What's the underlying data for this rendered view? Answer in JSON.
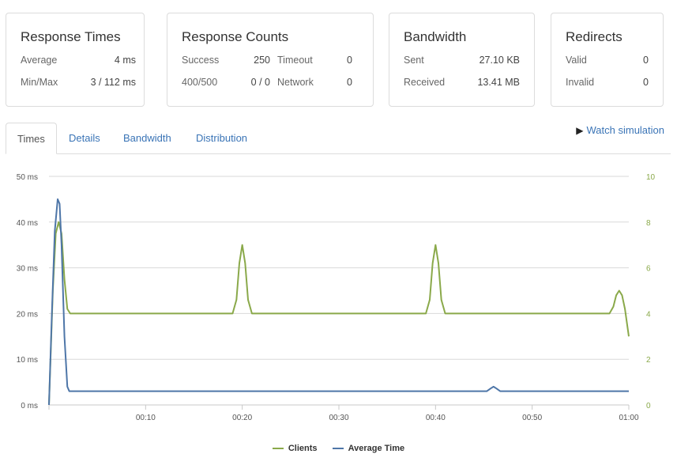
{
  "cards": {
    "response_times": {
      "title": "Response Times",
      "rows": [
        {
          "label": "Average",
          "value": "4 ms"
        },
        {
          "label": "Min/Max",
          "value": "3 / 112 ms"
        }
      ]
    },
    "response_counts": {
      "title": "Response Counts",
      "left": [
        {
          "label": "Success",
          "value": "250"
        },
        {
          "label": "400/500",
          "value": "0 / 0"
        }
      ],
      "right": [
        {
          "label": "Timeout",
          "value": "0"
        },
        {
          "label": "Network",
          "value": "0"
        }
      ]
    },
    "bandwidth": {
      "title": "Bandwidth",
      "rows": [
        {
          "label": "Sent",
          "value": "27.10 KB"
        },
        {
          "label": "Received",
          "value": "13.41 MB"
        }
      ]
    },
    "redirects": {
      "title": "Redirects",
      "rows": [
        {
          "label": "Valid",
          "value": "0"
        },
        {
          "label": "Invalid",
          "value": "0"
        }
      ]
    }
  },
  "tabs": [
    {
      "label": "Times",
      "active": true
    },
    {
      "label": "Details",
      "active": false
    },
    {
      "label": "Bandwidth",
      "active": false
    },
    {
      "label": "Distribution",
      "active": false
    }
  ],
  "watch_simulation": {
    "icon": "play-icon",
    "label": "Watch simulation"
  },
  "colors": {
    "clients": "#8aa94a",
    "average_time": "#4e76a8",
    "link": "#3a74b6"
  },
  "chart_data": {
    "type": "line",
    "x_unit": "seconds",
    "x_ticks": [
      "00:10",
      "00:20",
      "00:30",
      "00:40",
      "00:50",
      "01:00"
    ],
    "x_tick_values": [
      10,
      20,
      30,
      40,
      50,
      60
    ],
    "xlim": [
      0,
      60
    ],
    "y_left": {
      "ticks": [
        "0 ms",
        "10 ms",
        "20 ms",
        "30 ms",
        "40 ms",
        "50 ms"
      ],
      "tick_values": [
        0,
        10,
        20,
        30,
        40,
        50
      ],
      "lim": [
        0,
        50
      ]
    },
    "y_right": {
      "ticks": [
        "0",
        "2",
        "4",
        "6",
        "8",
        "10"
      ],
      "tick_values": [
        0,
        2,
        4,
        6,
        8,
        10
      ],
      "lim": [
        0,
        10
      ]
    },
    "grid": true,
    "legend_position": "bottom-center",
    "series": [
      {
        "name": "Clients",
        "axis": "right",
        "color": "#8aa94a",
        "points": [
          [
            0,
            0
          ],
          [
            0.4,
            5
          ],
          [
            0.7,
            7.5
          ],
          [
            1.0,
            8
          ],
          [
            1.3,
            7.5
          ],
          [
            1.6,
            5.5
          ],
          [
            1.9,
            4.2
          ],
          [
            2.2,
            4
          ],
          [
            19.0,
            4
          ],
          [
            19.4,
            4.6
          ],
          [
            19.7,
            6.2
          ],
          [
            20.0,
            7
          ],
          [
            20.3,
            6.2
          ],
          [
            20.6,
            4.6
          ],
          [
            21.0,
            4
          ],
          [
            39.0,
            4
          ],
          [
            39.4,
            4.6
          ],
          [
            39.7,
            6.2
          ],
          [
            40.0,
            7
          ],
          [
            40.3,
            6.2
          ],
          [
            40.6,
            4.6
          ],
          [
            41.0,
            4
          ],
          [
            58.0,
            4
          ],
          [
            58.4,
            4.3
          ],
          [
            58.7,
            4.8
          ],
          [
            59.0,
            5
          ],
          [
            59.3,
            4.8
          ],
          [
            59.6,
            4.2
          ],
          [
            60.0,
            3
          ]
        ]
      },
      {
        "name": "Average Time",
        "axis": "left",
        "color": "#4e76a8",
        "points": [
          [
            0,
            0
          ],
          [
            0.3,
            20
          ],
          [
            0.6,
            38
          ],
          [
            0.9,
            45
          ],
          [
            1.1,
            44
          ],
          [
            1.3,
            35
          ],
          [
            1.6,
            15
          ],
          [
            1.9,
            4
          ],
          [
            2.1,
            3
          ],
          [
            45.3,
            3
          ],
          [
            45.7,
            3.6
          ],
          [
            46.0,
            4
          ],
          [
            46.3,
            3.6
          ],
          [
            46.7,
            3
          ],
          [
            60.0,
            3
          ]
        ]
      }
    ]
  }
}
